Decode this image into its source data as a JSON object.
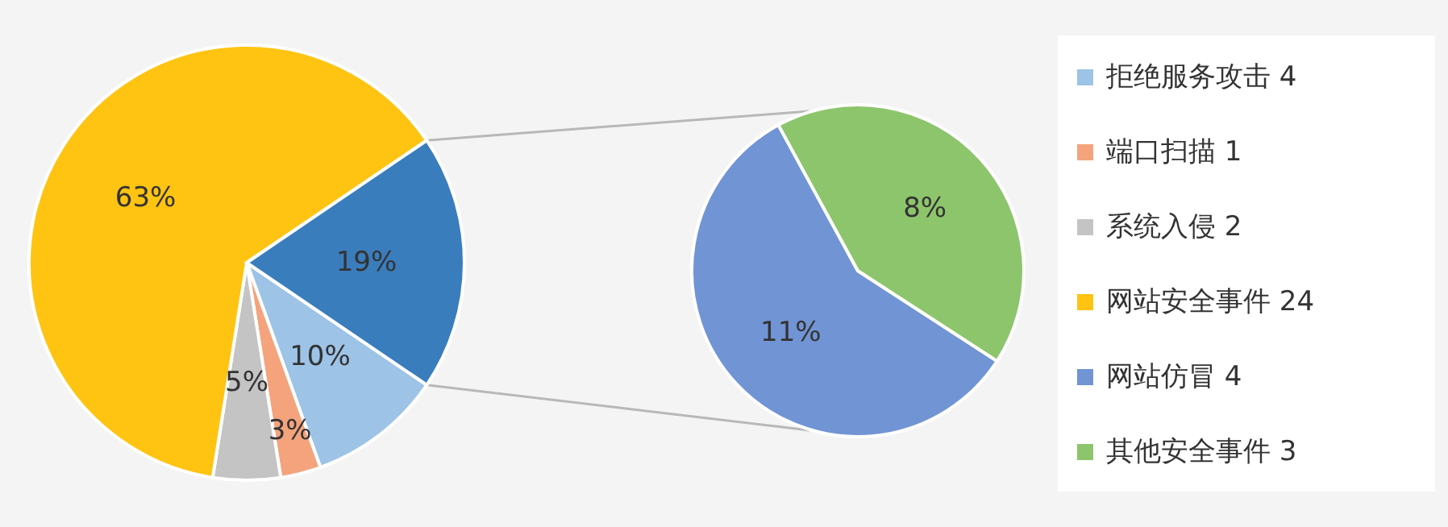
{
  "chart_data": [
    {
      "type": "pie",
      "categories": [
        "拒绝服务攻击 4",
        "端口扫描 1",
        "系统入侵 2",
        "网站安全事件 24",
        null
      ],
      "values": [
        10,
        3,
        5,
        63,
        19
      ],
      "colors": [
        "#9dc3e6",
        "#f4a37c",
        "#c4c4c4",
        "#ffc312",
        "#3a7dbd"
      ],
      "value_labels": [
        "10%",
        "3%",
        "5%",
        "63%",
        "19%"
      ],
      "legend": "right"
    },
    {
      "type": "pie",
      "categories": [
        "网站仿冒 4",
        "其他安全事件 3"
      ],
      "values": [
        11,
        8
      ],
      "colors": [
        "#7194d4",
        "#8dc56c"
      ],
      "value_labels": [
        "11%",
        "8%"
      ],
      "legend": "right"
    }
  ]
}
